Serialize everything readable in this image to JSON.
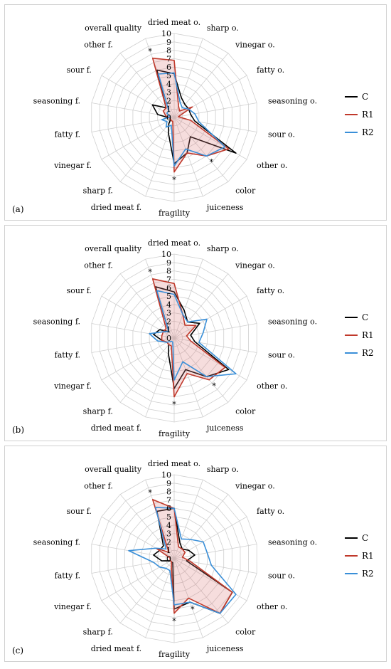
{
  "chart_data": [
    {
      "type": "radar",
      "panel_label": "(a)",
      "categories": [
        "dried meat o.",
        "sharp o.",
        "vinegar o.",
        "fatty o.",
        "seasoning o.",
        "sour o.",
        "other o.",
        "color",
        "juiceness",
        "fragility",
        "dried meat f.",
        "sharp f.",
        "vinegar f.",
        "fatty f.",
        "seasoning f.",
        "sour f.",
        "other f.",
        "overall quality"
      ],
      "rlim": [
        0,
        10
      ],
      "ticks": [
        "0",
        "1",
        "2",
        "3",
        "4",
        "5",
        "6",
        "7",
        "8",
        "9",
        "10"
      ],
      "significance": [
        "",
        "",
        "",
        "",
        "",
        "",
        "",
        "*",
        "",
        "*",
        "",
        "",
        "",
        "",
        "",
        "",
        "",
        "*"
      ],
      "series": [
        {
          "name": "C",
          "color": "#000000",
          "values": [
            5.2,
            2.5,
            2.0,
            2.0,
            2.0,
            2.5,
            8.5,
            3.0,
            4.5,
            5.5,
            2.0,
            1.0,
            0.5,
            0.5,
            2.0,
            3.0,
            1.5,
            6.0
          ]
        },
        {
          "name": "R1",
          "color": "#c0392b",
          "values": [
            6.8,
            1.5,
            1.0,
            2.5,
            0.5,
            2.0,
            7.5,
            6.0,
            4.5,
            6.5,
            0.5,
            0.5,
            0.5,
            0.5,
            1.0,
            1.5,
            1.5,
            7.5
          ]
        },
        {
          "name": "R2",
          "color": "#3a8fd8",
          "values": [
            5.3,
            2.0,
            1.5,
            2.0,
            2.5,
            3.0,
            7.0,
            6.0,
            4.0,
            5.8,
            1.0,
            1.5,
            1.0,
            1.5,
            0.5,
            1.0,
            1.0,
            5.5
          ]
        }
      ]
    },
    {
      "type": "radar",
      "panel_label": "(b)",
      "categories": [
        "dried meat o.",
        "sharp o.",
        "vinegar o.",
        "fatty o.",
        "seasoning o.",
        "sour o.",
        "other o.",
        "color",
        "juiceness",
        "fragility",
        "dried meat f.",
        "sharp f.",
        "vinegar f.",
        "fatty f.",
        "seasoning f.",
        "sour f.",
        "other f.",
        "overall quality"
      ],
      "rlim": [
        0,
        10
      ],
      "ticks": [
        "0",
        "1",
        "2",
        "3",
        "4",
        "5",
        "6",
        "7",
        "8",
        "9",
        "10"
      ],
      "significance": [
        "",
        "",
        "",
        "",
        "",
        "",
        "",
        "*",
        "",
        "*",
        "",
        "",
        "",
        "",
        "",
        "",
        "",
        "*"
      ],
      "series": [
        {
          "name": "C",
          "color": "#000000",
          "values": [
            5.5,
            3.5,
            2.5,
            3.5,
            2.0,
            2.5,
            7.5,
            6.0,
            4.0,
            6.0,
            2.0,
            1.0,
            1.0,
            1.5,
            2.5,
            2.0,
            1.0,
            6.5
          ]
        },
        {
          "name": "R1",
          "color": "#c0392b",
          "values": [
            6.5,
            3.0,
            2.0,
            3.0,
            1.5,
            2.0,
            7.0,
            6.5,
            4.5,
            7.0,
            1.0,
            1.0,
            1.0,
            1.5,
            1.5,
            1.5,
            1.5,
            7.5
          ]
        },
        {
          "name": "R2",
          "color": "#3a8fd8",
          "values": [
            5.2,
            3.0,
            2.5,
            4.5,
            3.5,
            3.0,
            8.5,
            6.0,
            3.0,
            5.0,
            0.5,
            0.5,
            1.0,
            2.0,
            3.0,
            1.5,
            1.0,
            6.0
          ]
        }
      ]
    },
    {
      "type": "radar",
      "panel_label": "(c)",
      "categories": [
        "dried meat o.",
        "sharp o.",
        "vinegar o.",
        "fatty o.",
        "seasoning o.",
        "sour o.",
        "other o.",
        "color",
        "juiceness",
        "fragility",
        "dried meat f.",
        "sharp f.",
        "vinegar f.",
        "fatty f.",
        "seasoning f.",
        "sour f.",
        "other f.",
        "overall quality"
      ],
      "rlim": [
        0,
        10
      ],
      "ticks": [
        "0",
        "1",
        "2",
        "3",
        "4",
        "5",
        "6",
        "7",
        "8",
        "9",
        "10"
      ],
      "significance": [
        "",
        "",
        "",
        "",
        "",
        "",
        "",
        "",
        "*",
        "*",
        "",
        "",
        "",
        "",
        "",
        "",
        "",
        "*"
      ],
      "series": [
        {
          "name": "C",
          "color": "#000000",
          "values": [
            6.0,
            2.0,
            1.5,
            2.0,
            2.5,
            1.5,
            8.0,
            8.5,
            5.5,
            6.0,
            0.5,
            0.5,
            0.5,
            1.5,
            2.5,
            2.0,
            2.0,
            6.0
          ]
        },
        {
          "name": "R1",
          "color": "#c0392b",
          "values": [
            6.0,
            1.5,
            1.5,
            1.5,
            1.0,
            2.0,
            8.0,
            8.5,
            5.0,
            6.5,
            1.0,
            0.5,
            0.5,
            0.5,
            0.5,
            2.5,
            1.0,
            7.5
          ]
        },
        {
          "name": "R2",
          "color": "#3a8fd8",
          "values": [
            6.0,
            2.5,
            3.0,
            4.0,
            4.0,
            4.5,
            8.5,
            8.5,
            5.5,
            5.5,
            1.5,
            1.5,
            2.0,
            2.5,
            5.5,
            2.5,
            1.5,
            6.5
          ]
        }
      ]
    }
  ]
}
